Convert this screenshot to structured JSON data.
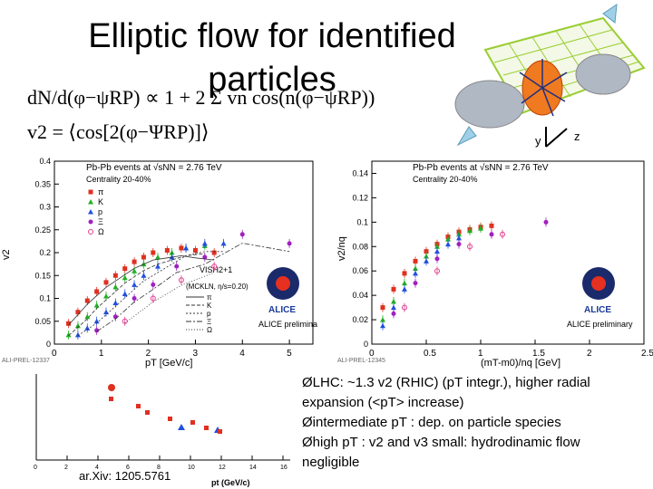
{
  "slide": {
    "title": "Elliptic flow for identified particles",
    "formula_distribution": "dN/d(φ−ψRP) ∝ 1 + 2 Σ vn cos(n(φ−ψRP))",
    "formula_v2": "v2 = ⟨cos[2(φ−ΨRP)]⟩",
    "axis_y_letter": "y",
    "axis_z_letter": "z",
    "arxiv_ref": "ar.Xiv: 1205.5761",
    "bullets": [
      "ØLHC: ~1.3 v2 (RHIC) (pT integr.), higher radial",
      "expansion (<pT> increase)",
      "Øintermediate pT : dep. on particle species",
      "Øhigh pT : v2 and v3 small: hydrodinamic flow",
      "negligible"
    ]
  },
  "plots": {
    "left": {
      "event_label": "Pb-Pb events at √sNN = 2.76 TeV",
      "centrality": "Centrality 20-40%",
      "legend": [
        "π",
        "K",
        "p",
        "Ξ",
        "Ω"
      ],
      "model_title": "VISH2+1",
      "model_subtitle": "(MCKLN, η/s=0.20)",
      "model_legend": [
        "π",
        "K",
        "p",
        "Ξ",
        "Ω"
      ],
      "xlabel": "pT [GeV/c]",
      "ylabel": "v2",
      "xticks": [
        "0",
        "1",
        "2",
        "3",
        "4",
        "5"
      ],
      "yticks": [
        "0",
        "0.05",
        "0.1",
        "0.15",
        "0.2",
        "0.25",
        "0.3",
        "0.35",
        "0.4"
      ],
      "logo_text": "ALICE",
      "prelim": "ALICE preliminary",
      "prel_tag": "ALI-PREL-12337"
    },
    "right": {
      "event_label": "Pb-Pb events at √sNN = 2.76 TeV",
      "centrality": "Centrality 20-40%",
      "xlabel": "(mT-m0)/nq [GeV]",
      "ylabel": "v2/nq",
      "xticks": [
        "0",
        "0.5",
        "1",
        "1.5",
        "2",
        "2.5"
      ],
      "yticks": [
        "0",
        "0.02",
        "0.04",
        "0.06",
        "0.08",
        "0.1",
        "0.12",
        "0.14"
      ],
      "logo_text": "ALICE",
      "prelim": "ALICE preliminary",
      "prel_tag": "ALI-PREL-12345"
    },
    "bottom": {
      "xticks": [
        "0",
        "2",
        "4",
        "6",
        "8",
        "10",
        "12",
        "14",
        "16"
      ],
      "xlabel": "pt (GeV/c)"
    }
  },
  "colors": {
    "pion": "#e03020",
    "kaon": "#20b020",
    "proton": "#2050e0",
    "xi": "#a020c0",
    "omega": "#e04090",
    "grid_plane": "#9acd32"
  },
  "chart_data": [
    {
      "type": "scatter",
      "title": "Pb-Pb events at √sNN = 2.76 TeV",
      "xlabel": "pT [GeV/c]",
      "ylabel": "v2",
      "xlim": [
        0,
        5.5
      ],
      "ylim": [
        0,
        0.4
      ],
      "series": [
        {
          "name": "π",
          "x": [
            0.3,
            0.5,
            0.7,
            0.9,
            1.1,
            1.3,
            1.5,
            1.7,
            1.9,
            2.1,
            2.4,
            2.7,
            3.0,
            3.4
          ],
          "y": [
            0.045,
            0.07,
            0.095,
            0.115,
            0.135,
            0.15,
            0.165,
            0.18,
            0.19,
            0.2,
            0.205,
            0.21,
            0.205,
            0.2
          ]
        },
        {
          "name": "K",
          "x": [
            0.3,
            0.5,
            0.7,
            0.9,
            1.1,
            1.3,
            1.5,
            1.7,
            1.9,
            2.2,
            2.5,
            2.8,
            3.2
          ],
          "y": [
            0.02,
            0.04,
            0.06,
            0.085,
            0.105,
            0.125,
            0.145,
            0.16,
            0.175,
            0.19,
            0.2,
            0.21,
            0.215
          ]
        },
        {
          "name": "p",
          "x": [
            0.5,
            0.7,
            0.9,
            1.1,
            1.3,
            1.5,
            1.7,
            1.9,
            2.2,
            2.5,
            2.8,
            3.2,
            3.6
          ],
          "y": [
            0.02,
            0.035,
            0.05,
            0.07,
            0.09,
            0.11,
            0.13,
            0.15,
            0.17,
            0.19,
            0.21,
            0.22,
            0.22
          ]
        },
        {
          "name": "Ξ",
          "x": [
            0.9,
            1.3,
            1.7,
            2.1,
            2.6,
            3.2,
            4.0,
            5.0
          ],
          "y": [
            0.03,
            0.06,
            0.1,
            0.13,
            0.17,
            0.19,
            0.24,
            0.22
          ]
        },
        {
          "name": "Ω",
          "x": [
            1.5,
            2.1,
            2.7,
            3.4
          ],
          "y": [
            0.05,
            0.1,
            0.14,
            0.17
          ]
        }
      ]
    },
    {
      "type": "scatter",
      "title": "Pb-Pb events at √sNN = 2.76 TeV",
      "xlabel": "(mT-m0)/nq [GeV]",
      "ylabel": "v2/nq",
      "xlim": [
        0,
        2.5
      ],
      "ylim": [
        0,
        0.15
      ],
      "series": [
        {
          "name": "π",
          "x": [
            0.1,
            0.2,
            0.3,
            0.4,
            0.5,
            0.6,
            0.7,
            0.8,
            0.9,
            1.0,
            1.1
          ],
          "y": [
            0.03,
            0.045,
            0.058,
            0.068,
            0.076,
            0.082,
            0.088,
            0.092,
            0.094,
            0.096,
            0.097
          ]
        },
        {
          "name": "K",
          "x": [
            0.1,
            0.2,
            0.3,
            0.4,
            0.5,
            0.6,
            0.7,
            0.8,
            0.9,
            1.0
          ],
          "y": [
            0.02,
            0.035,
            0.05,
            0.062,
            0.072,
            0.08,
            0.086,
            0.09,
            0.093,
            0.095
          ]
        },
        {
          "name": "p",
          "x": [
            0.1,
            0.2,
            0.3,
            0.4,
            0.5,
            0.6,
            0.7,
            0.8
          ],
          "y": [
            0.015,
            0.03,
            0.045,
            0.058,
            0.068,
            0.076,
            0.082,
            0.087
          ]
        },
        {
          "name": "Ξ",
          "x": [
            0.2,
            0.4,
            0.6,
            0.8,
            1.1,
            1.6
          ],
          "y": [
            0.025,
            0.05,
            0.07,
            0.082,
            0.09,
            0.1
          ]
        },
        {
          "name": "Ω",
          "x": [
            0.3,
            0.6,
            0.9,
            1.2
          ],
          "y": [
            0.03,
            0.06,
            0.08,
            0.09
          ]
        }
      ]
    }
  ]
}
